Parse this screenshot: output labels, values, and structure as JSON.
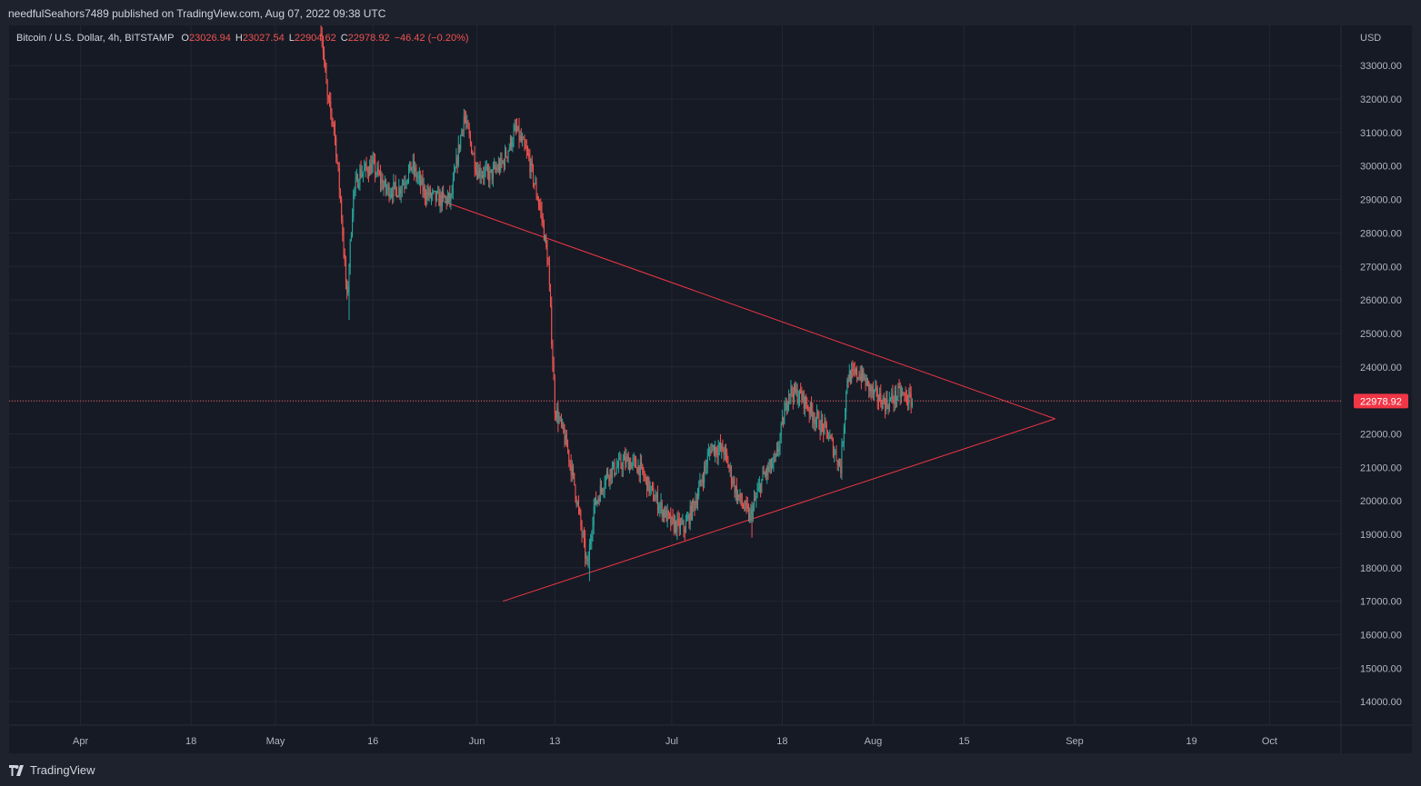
{
  "header": {
    "published_text": "needfulSeahors7489 published on TradingView.com, Aug 07, 2022 09:38 UTC"
  },
  "legend": {
    "symbol": "Bitcoin / U.S. Dollar, 4h, BITSTAMP",
    "o_label": "O",
    "o_value": "23026.94",
    "h_label": "H",
    "h_value": "23027.54",
    "l_label": "L",
    "l_value": "22904.62",
    "c_label": "C",
    "c_value": "22978.92",
    "change": "−46.42 (−0.20%)"
  },
  "footer": {
    "brand": "TradingView"
  },
  "colors": {
    "up": "#26a69a",
    "down": "#ef5350",
    "trendline": "#f23645",
    "grid": "#242733",
    "axis_text": "#b2b5be",
    "price_label_bg": "#f23645"
  },
  "chart_data": {
    "type": "candlestick",
    "currency_label": "USD",
    "ylim": [
      13300,
      34200
    ],
    "x_range": [
      "2022-03-21",
      "2022-10-12"
    ],
    "y_ticks": [
      14000,
      15000,
      16000,
      17000,
      18000,
      19000,
      20000,
      21000,
      22000,
      23000,
      24000,
      25000,
      26000,
      27000,
      28000,
      29000,
      30000,
      31000,
      32000,
      33000
    ],
    "y_tick_labels": [
      "14000.00",
      "15000.00",
      "16000.00",
      "17000.00",
      "18000.00",
      "19000.00",
      "20000.00",
      "21000.00",
      "22000.00",
      "23000.00",
      "24000.00",
      "25000.00",
      "26000.00",
      "27000.00",
      "28000.00",
      "29000.00",
      "30000.00",
      "31000.00",
      "32000.00",
      "33000.00"
    ],
    "x_ticks": [
      {
        "label": "Apr",
        "date": "2022-04-01"
      },
      {
        "label": "18",
        "date": "2022-04-18"
      },
      {
        "label": "May",
        "date": "2022-05-01"
      },
      {
        "label": "16",
        "date": "2022-05-16"
      },
      {
        "label": "Jun",
        "date": "2022-06-01"
      },
      {
        "label": "13",
        "date": "2022-06-13"
      },
      {
        "label": "Jul",
        "date": "2022-07-01"
      },
      {
        "label": "18",
        "date": "2022-07-18"
      },
      {
        "label": "Aug",
        "date": "2022-08-01"
      },
      {
        "label": "15",
        "date": "2022-08-15"
      },
      {
        "label": "Sep",
        "date": "2022-09-01"
      },
      {
        "label": "19",
        "date": "2022-09-19"
      },
      {
        "label": "Oct",
        "date": "2022-10-01"
      }
    ],
    "last_price": 22978.92,
    "last_price_label": "22978.92",
    "trendlines": [
      {
        "name": "upper",
        "from": {
          "date": "2022-05-26",
          "price": 29000
        },
        "to": {
          "date": "2022-08-29",
          "price": 22450
        }
      },
      {
        "name": "lower",
        "from": {
          "date": "2022-06-05",
          "price": 17000
        },
        "to": {
          "date": "2022-08-29",
          "price": 22450
        }
      }
    ],
    "path": [
      [
        "2022-05-08",
        34200
      ],
      [
        "2022-05-09",
        32000
      ],
      [
        "2022-05-10",
        31200
      ],
      [
        "2022-05-11",
        29000
      ],
      [
        "2022-05-12",
        26000
      ],
      [
        "2022-05-13",
        29200
      ],
      [
        "2022-05-14",
        29800
      ],
      [
        "2022-05-16",
        30000
      ],
      [
        "2022-05-18",
        29300
      ],
      [
        "2022-05-20",
        29300
      ],
      [
        "2022-05-22",
        30000
      ],
      [
        "2022-05-24",
        29200
      ],
      [
        "2022-05-26",
        29000
      ],
      [
        "2022-05-28",
        29000
      ],
      [
        "2022-05-30",
        31500
      ],
      [
        "2022-06-01",
        29900
      ],
      [
        "2022-06-03",
        29700
      ],
      [
        "2022-06-05",
        30100
      ],
      [
        "2022-06-07",
        31100
      ],
      [
        "2022-06-09",
        30200
      ],
      [
        "2022-06-11",
        28500
      ],
      [
        "2022-06-12",
        27000
      ],
      [
        "2022-06-13",
        22800
      ],
      [
        "2022-06-14",
        22200
      ],
      [
        "2022-06-15",
        21500
      ],
      [
        "2022-06-16",
        20500
      ],
      [
        "2022-06-18",
        18000
      ],
      [
        "2022-06-19",
        19800
      ],
      [
        "2022-06-21",
        20800
      ],
      [
        "2022-06-24",
        21200
      ],
      [
        "2022-06-26",
        21000
      ],
      [
        "2022-06-28",
        20200
      ],
      [
        "2022-07-01",
        19300
      ],
      [
        "2022-07-03",
        19200
      ],
      [
        "2022-07-05",
        20200
      ],
      [
        "2022-07-07",
        21600
      ],
      [
        "2022-07-09",
        21500
      ],
      [
        "2022-07-11",
        20200
      ],
      [
        "2022-07-13",
        19500
      ],
      [
        "2022-07-15",
        20700
      ],
      [
        "2022-07-17",
        21200
      ],
      [
        "2022-07-19",
        23300
      ],
      [
        "2022-07-21",
        23100
      ],
      [
        "2022-07-23",
        22500
      ],
      [
        "2022-07-25",
        22000
      ],
      [
        "2022-07-27",
        21000
      ],
      [
        "2022-07-28",
        23700
      ],
      [
        "2022-07-30",
        23800
      ],
      [
        "2022-08-01",
        23200
      ],
      [
        "2022-08-03",
        22900
      ],
      [
        "2022-08-05",
        23200
      ],
      [
        "2022-08-07",
        22979
      ]
    ]
  }
}
